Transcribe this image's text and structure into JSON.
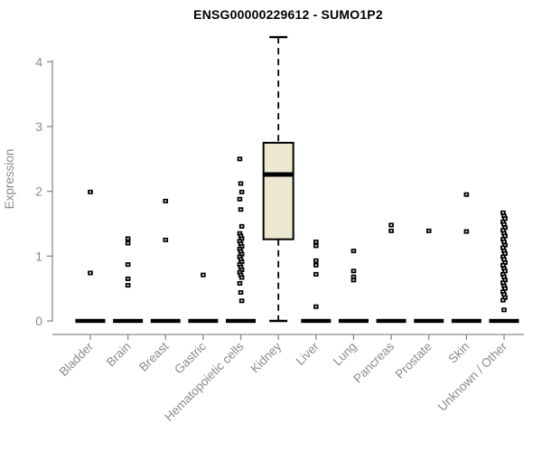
{
  "chart_data": {
    "type": "boxplot-scatter",
    "title": "ENSG00000229612 - SUMO1P2",
    "ylabel": "Expression",
    "xlabel": "",
    "ylim": [
      0,
      4.5
    ],
    "yticks": [
      0,
      1,
      2,
      3,
      4
    ],
    "grid": false,
    "legend": "none",
    "categories": [
      "Bladder",
      "Brain",
      "Breast",
      "Gastric",
      "Hematopoietic cells",
      "Kidney",
      "Liver",
      "Lung",
      "Pancreas",
      "Prostate",
      "Skin",
      "Unknown / Other"
    ],
    "series": [
      {
        "category": "Bladder",
        "points": [
          1.99,
          0.74
        ],
        "zero_cluster": true
      },
      {
        "category": "Brain",
        "points": [
          1.27,
          1.2,
          0.87,
          0.65,
          0.55
        ],
        "zero_cluster": true
      },
      {
        "category": "Breast",
        "points": [
          1.85,
          1.25
        ],
        "zero_cluster": true
      },
      {
        "category": "Gastric",
        "points": [
          0.71
        ],
        "zero_cluster": true
      },
      {
        "category": "Hematopoietic cells",
        "points": [
          2.5,
          2.12,
          1.99,
          1.88,
          1.72,
          1.46,
          1.35,
          1.31,
          1.27,
          1.23,
          1.19,
          1.15,
          1.11,
          1.07,
          1.03,
          0.99,
          0.95,
          0.91,
          0.87,
          0.83,
          0.79,
          0.75,
          0.71,
          0.67,
          0.58,
          0.44,
          0.31
        ],
        "zero_cluster": true
      },
      {
        "category": "Kidney",
        "points": [],
        "zero_cluster": false,
        "box": {
          "whisker_low": 0,
          "q1": 1.26,
          "median": 2.26,
          "q3": 2.75,
          "whisker_high": 4.38
        }
      },
      {
        "category": "Liver",
        "points": [
          1.22,
          1.16,
          0.93,
          0.86,
          0.72,
          0.22
        ],
        "zero_cluster": true
      },
      {
        "category": "Lung",
        "points": [
          1.08,
          0.77,
          0.68,
          0.63
        ],
        "zero_cluster": true
      },
      {
        "category": "Pancreas",
        "points": [
          1.48,
          1.39
        ],
        "zero_cluster": true
      },
      {
        "category": "Prostate",
        "points": [
          1.39
        ],
        "zero_cluster": true
      },
      {
        "category": "Skin",
        "points": [
          1.95,
          1.38
        ],
        "zero_cluster": true
      },
      {
        "category": "Unknown / Other",
        "points": [
          1.67,
          1.62,
          1.58,
          1.53,
          1.49,
          1.44,
          1.4,
          1.35,
          1.31,
          1.26,
          1.22,
          1.17,
          1.13,
          1.08,
          1.04,
          0.99,
          0.95,
          0.9,
          0.86,
          0.81,
          0.77,
          0.72,
          0.68,
          0.63,
          0.59,
          0.54,
          0.5,
          0.45,
          0.41,
          0.36,
          0.32,
          0.17
        ],
        "zero_cluster": true
      }
    ],
    "colors": {
      "title": "#000000",
      "axis": "#8a8a8a",
      "box_fill": "#ede8d1",
      "box_border": "#000000",
      "median": "#000000",
      "marker": "#000000",
      "background": "#ffffff"
    }
  }
}
